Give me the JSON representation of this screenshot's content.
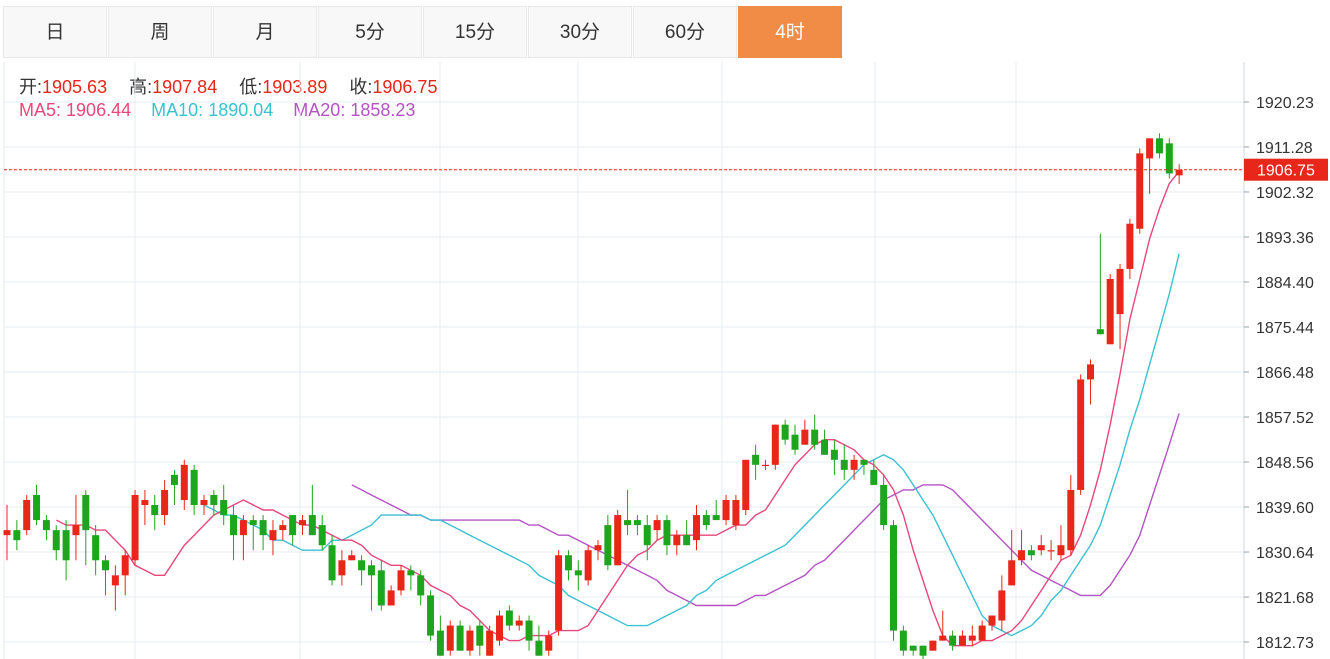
{
  "tabs": [
    {
      "label": "日",
      "active": false
    },
    {
      "label": "周",
      "active": false
    },
    {
      "label": "月",
      "active": false
    },
    {
      "label": "5分",
      "active": false
    },
    {
      "label": "15分",
      "active": false
    },
    {
      "label": "30分",
      "active": false
    },
    {
      "label": "60分",
      "active": false
    },
    {
      "label": "4时",
      "active": true
    }
  ],
  "ohlc": {
    "open_label": "开:",
    "open": "1905.63",
    "high_label": "高:",
    "high": "1907.84",
    "low_label": "低:",
    "low": "1903.89",
    "close_label": "收:",
    "close": "1906.75"
  },
  "ma": {
    "ma5_label": "MA5:",
    "ma5": "1906.44",
    "ma10_label": "MA10:",
    "ma10": "1890.04",
    "ma20_label": "MA20:",
    "ma20": "1858.23"
  },
  "price_tag": "1906.75",
  "colors": {
    "up": "#e8261a",
    "down": "#1ea51e",
    "accent": "#f08c45",
    "ma5": "#e8477a",
    "ma10": "#3bc1d0",
    "ma20": "#b453c4",
    "grid": "#e6ecf2",
    "ohlc_value": "#e8261a"
  },
  "chart_data": {
    "type": "candlestick",
    "y_ticks": [
      "1920.23",
      "1911.28",
      "1902.32",
      "1893.36",
      "1884.40",
      "1875.44",
      "1866.48",
      "1857.52",
      "1848.56",
      "1839.60",
      "1830.64",
      "1821.68",
      "1812.73"
    ],
    "ylim": [
      1810.5,
      1928.0
    ],
    "current_price": 1906.75,
    "candles": [
      [
        1834,
        1835,
        1829,
        1840
      ],
      [
        1835,
        1833,
        1831,
        1837
      ],
      [
        1835,
        1841,
        1834,
        1842
      ],
      [
        1842,
        1837,
        1836,
        1844
      ],
      [
        1837,
        1835,
        1833,
        1838
      ],
      [
        1835,
        1831,
        1829,
        1836
      ],
      [
        1835,
        1829,
        1825,
        1837
      ],
      [
        1834,
        1836,
        1829,
        1842
      ],
      [
        1842,
        1835,
        1828,
        1843
      ],
      [
        1834,
        1829,
        1826,
        1836
      ],
      [
        1829,
        1827,
        1822,
        1830
      ],
      [
        1824,
        1826,
        1819,
        1828
      ],
      [
        1826,
        1830,
        1822,
        1831
      ],
      [
        1829,
        1842,
        1828,
        1843
      ],
      [
        1840,
        1841,
        1836,
        1843
      ],
      [
        1840,
        1838,
        1835,
        1842
      ],
      [
        1838,
        1843,
        1836,
        1845
      ],
      [
        1846,
        1844,
        1840,
        1847
      ],
      [
        1841,
        1848,
        1839,
        1849
      ],
      [
        1847,
        1840,
        1838,
        1848
      ],
      [
        1840,
        1841,
        1838,
        1842
      ],
      [
        1842,
        1840,
        1838,
        1843
      ],
      [
        1841,
        1838,
        1836,
        1844
      ],
      [
        1838,
        1834,
        1829,
        1840
      ],
      [
        1834,
        1837,
        1829,
        1838
      ],
      [
        1837,
        1836,
        1831,
        1838
      ],
      [
        1837,
        1834,
        1831,
        1838
      ],
      [
        1833,
        1835,
        1830,
        1837
      ],
      [
        1835,
        1836,
        1833,
        1837
      ],
      [
        1838,
        1834,
        1832,
        1838
      ],
      [
        1836,
        1837,
        1834,
        1838
      ],
      [
        1838,
        1834,
        1834,
        1844
      ],
      [
        1836,
        1832,
        1831,
        1838
      ],
      [
        1832,
        1825,
        1824,
        1834
      ],
      [
        1826,
        1829,
        1824,
        1831
      ],
      [
        1829,
        1830,
        1829,
        1831
      ],
      [
        1829,
        1827,
        1824,
        1830
      ],
      [
        1828,
        1826,
        1819,
        1829
      ],
      [
        1827,
        1820,
        1819,
        1829
      ],
      [
        1820,
        1823,
        1820,
        1824
      ],
      [
        1823,
        1827,
        1822,
        1828
      ],
      [
        1827,
        1826,
        1823,
        1828
      ],
      [
        1826,
        1822,
        1820,
        1827
      ],
      [
        1822,
        1814,
        1813,
        1823
      ],
      [
        1815,
        1810,
        1810,
        1818
      ],
      [
        1811,
        1816,
        1810,
        1817
      ],
      [
        1816,
        1811,
        1811,
        1817
      ],
      [
        1811,
        1815,
        1810,
        1816
      ],
      [
        1816,
        1812,
        1810,
        1817
      ],
      [
        1810,
        1815,
        1810,
        1816
      ],
      [
        1813,
        1818,
        1812,
        1819
      ],
      [
        1819,
        1816,
        1815,
        1820
      ],
      [
        1816,
        1817,
        1815,
        1818
      ],
      [
        1817,
        1813,
        1811,
        1818
      ],
      [
        1813,
        1810,
        1810,
        1816
      ],
      [
        1811,
        1814,
        1810,
        1815
      ],
      [
        1815,
        1830,
        1814,
        1831
      ],
      [
        1830,
        1827,
        1825,
        1831
      ],
      [
        1827,
        1826,
        1823,
        1829
      ],
      [
        1825,
        1831,
        1824,
        1832
      ],
      [
        1831,
        1832,
        1829,
        1833
      ],
      [
        1836,
        1828,
        1827,
        1838
      ],
      [
        1828,
        1838,
        1828,
        1839
      ],
      [
        1837,
        1836,
        1834,
        1843
      ],
      [
        1837,
        1836,
        1834,
        1838
      ],
      [
        1836,
        1832,
        1829,
        1838
      ],
      [
        1835,
        1837,
        1833,
        1838
      ],
      [
        1837,
        1832,
        1830,
        1838
      ],
      [
        1832,
        1834,
        1830,
        1835
      ],
      [
        1834,
        1832,
        1832,
        1837
      ],
      [
        1833,
        1838,
        1831,
        1840
      ],
      [
        1838,
        1836,
        1835,
        1839
      ],
      [
        1838,
        1837,
        1837,
        1841
      ],
      [
        1837,
        1841,
        1836,
        1842
      ],
      [
        1836,
        1841,
        1835,
        1842
      ],
      [
        1839,
        1849,
        1838,
        1849
      ],
      [
        1850,
        1848,
        1845,
        1852
      ],
      [
        1848,
        1848,
        1847,
        1849
      ],
      [
        1848,
        1856,
        1847,
        1856
      ],
      [
        1856,
        1853,
        1852,
        1857
      ],
      [
        1854,
        1851,
        1850,
        1856
      ],
      [
        1852,
        1855,
        1852,
        1857
      ],
      [
        1855,
        1852,
        1851,
        1858
      ],
      [
        1853,
        1850,
        1850,
        1855
      ],
      [
        1851,
        1849,
        1846,
        1853
      ],
      [
        1849,
        1847,
        1845,
        1852
      ],
      [
        1847,
        1849,
        1845,
        1850
      ],
      [
        1849,
        1848,
        1846,
        1849
      ],
      [
        1847,
        1844,
        1844,
        1849
      ],
      [
        1844,
        1836,
        1835,
        1846
      ],
      [
        1836,
        1815,
        1813,
        1837
      ],
      [
        1815,
        1811,
        1810,
        1816
      ],
      [
        1812,
        1811,
        1810,
        1812
      ],
      [
        1812,
        1810,
        1809,
        1812
      ],
      [
        1811,
        1813,
        1811,
        1813
      ],
      [
        1813,
        1814,
        1813,
        1819
      ],
      [
        1814,
        1812,
        1811,
        1815
      ],
      [
        1812,
        1814,
        1812,
        1815
      ],
      [
        1813,
        1814,
        1812,
        1816
      ],
      [
        1813,
        1816,
        1813,
        1817
      ],
      [
        1816,
        1818,
        1815,
        1818
      ],
      [
        1817,
        1823,
        1815,
        1826
      ],
      [
        1824,
        1829,
        1824,
        1835
      ],
      [
        1829,
        1831,
        1828,
        1835
      ],
      [
        1831,
        1830,
        1829,
        1832
      ],
      [
        1831,
        1832,
        1830,
        1834
      ],
      [
        1831,
        1831,
        1829,
        1833
      ],
      [
        1830,
        1832,
        1829,
        1836
      ],
      [
        1831,
        1843,
        1830,
        1846
      ],
      [
        1843,
        1865,
        1842,
        1866
      ],
      [
        1865,
        1868,
        1860,
        1869
      ],
      [
        1875,
        1874,
        1874,
        1894
      ],
      [
        1872,
        1885,
        1872,
        1886
      ],
      [
        1878,
        1887,
        1871,
        1888
      ],
      [
        1887,
        1896,
        1885,
        1897
      ],
      [
        1895,
        1910,
        1894,
        1911
      ],
      [
        1909,
        1913,
        1902,
        1913
      ],
      [
        1913,
        1910,
        1909,
        1914
      ],
      [
        1912,
        1906,
        1905,
        1913
      ],
      [
        1905.63,
        1906.75,
        1903.89,
        1907.84
      ]
    ],
    "ma5": [
      1837,
      1836,
      1836,
      1836,
      1835,
      1835,
      1833,
      1831,
      1828,
      1827,
      1826,
      1826,
      1829,
      1832,
      1834,
      1836,
      1838,
      1839,
      1840,
      1841,
      1840,
      1839,
      1839,
      1838,
      1837,
      1836,
      1836,
      1835,
      1834,
      1833,
      1833,
      1832,
      1830,
      1829,
      1828,
      1828,
      1827,
      1826,
      1824,
      1823,
      1822,
      1820,
      1819,
      1817,
      1815,
      1814,
      1813,
      1813,
      1814,
      1814,
      1814,
      1815,
      1815,
      1815,
      1816,
      1819,
      1822,
      1825,
      1828,
      1830,
      1831,
      1833,
      1834,
      1834,
      1834,
      1834,
      1834,
      1834,
      1835,
      1836,
      1836,
      1838,
      1839,
      1842,
      1845,
      1848,
      1850,
      1852,
      1853,
      1853,
      1852,
      1851,
      1849,
      1848,
      1846,
      1843,
      1838,
      1831,
      1825,
      1819,
      1814,
      1812,
      1812,
      1812,
      1813,
      1813,
      1814,
      1815,
      1817,
      1820,
      1823,
      1826,
      1829,
      1830,
      1834,
      1840,
      1847,
      1856,
      1866,
      1877,
      1885,
      1893,
      1899,
      1904,
      1906.44
    ],
    "ma10": [
      1840,
      1839,
      1838,
      1838,
      1837,
      1836,
      1835,
      1833,
      1833,
      1832,
      1831,
      1831,
      1831,
      1833,
      1833,
      1834,
      1835,
      1836,
      1838,
      1838,
      1838,
      1838,
      1838,
      1837,
      1837,
      1836,
      1835,
      1834,
      1833,
      1832,
      1831,
      1830,
      1829,
      1828,
      1826,
      1825,
      1824,
      1822,
      1821,
      1820,
      1819,
      1818,
      1817,
      1816,
      1816,
      1816,
      1817,
      1818,
      1819,
      1820,
      1822,
      1823,
      1825,
      1826,
      1827,
      1828,
      1829,
      1830,
      1831,
      1832,
      1834,
      1836,
      1838,
      1840,
      1842,
      1844,
      1846,
      1848,
      1849,
      1850,
      1849,
      1847,
      1844,
      1841,
      1838,
      1834,
      1830,
      1826,
      1822,
      1818,
      1816,
      1815,
      1814,
      1815,
      1816,
      1818,
      1821,
      1823,
      1826,
      1829,
      1832,
      1836,
      1842,
      1848,
      1855,
      1861,
      1868,
      1875,
      1882,
      1890.04
    ],
    "ma20": [
      1844,
      1843,
      1842,
      1841,
      1840,
      1839,
      1838,
      1838,
      1837,
      1837,
      1837,
      1837,
      1837,
      1837,
      1837,
      1837,
      1837,
      1837,
      1836,
      1836,
      1835,
      1834,
      1834,
      1833,
      1832,
      1831,
      1830,
      1829,
      1828,
      1827,
      1826,
      1825,
      1823,
      1822,
      1821,
      1820,
      1820,
      1820,
      1820,
      1820,
      1821,
      1822,
      1822,
      1823,
      1824,
      1825,
      1826,
      1828,
      1829,
      1831,
      1833,
      1835,
      1837,
      1839,
      1841,
      1842,
      1843,
      1843,
      1844,
      1844,
      1844,
      1843,
      1841,
      1839,
      1837,
      1835,
      1833,
      1831,
      1829,
      1827,
      1826,
      1825,
      1824,
      1823,
      1822,
      1822,
      1822,
      1824,
      1827,
      1830,
      1834,
      1840,
      1846,
      1852,
      1858.23
    ]
  }
}
